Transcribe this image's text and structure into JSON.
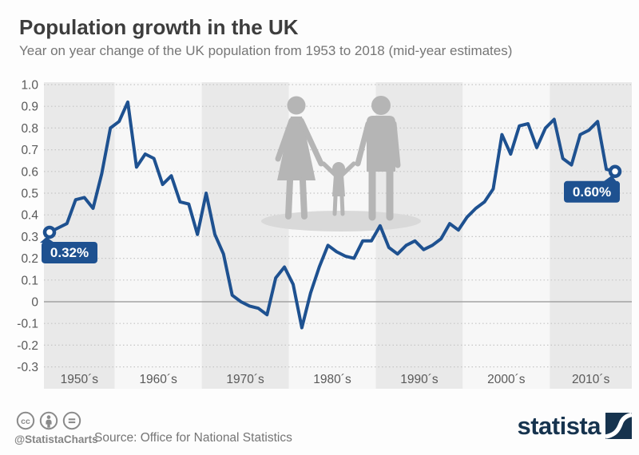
{
  "title": "Population growth in the UK",
  "subtitle": "Year on year change of the UK population from 1953 to 2018 (mid-year estimates)",
  "chart_data": {
    "type": "line",
    "series_name": "Year on year change of UK population (%)",
    "x": [
      1953,
      1954,
      1955,
      1956,
      1957,
      1958,
      1959,
      1960,
      1961,
      1962,
      1963,
      1964,
      1965,
      1966,
      1967,
      1968,
      1969,
      1970,
      1971,
      1972,
      1973,
      1974,
      1975,
      1976,
      1977,
      1978,
      1979,
      1980,
      1981,
      1982,
      1983,
      1984,
      1985,
      1986,
      1987,
      1988,
      1989,
      1990,
      1991,
      1992,
      1993,
      1994,
      1995,
      1996,
      1997,
      1998,
      1999,
      2000,
      2001,
      2002,
      2003,
      2004,
      2005,
      2006,
      2007,
      2008,
      2009,
      2010,
      2011,
      2012,
      2013,
      2014,
      2015,
      2016,
      2017,
      2018
    ],
    "values": [
      0.32,
      0.34,
      0.36,
      0.47,
      0.48,
      0.43,
      0.59,
      0.8,
      0.83,
      0.92,
      0.62,
      0.68,
      0.66,
      0.54,
      0.58,
      0.46,
      0.45,
      0.31,
      0.5,
      0.31,
      0.22,
      0.03,
      0.0,
      -0.02,
      -0.03,
      -0.06,
      0.11,
      0.16,
      0.08,
      -0.12,
      0.04,
      0.16,
      0.26,
      0.23,
      0.21,
      0.2,
      0.28,
      0.28,
      0.35,
      0.25,
      0.22,
      0.26,
      0.28,
      0.24,
      0.26,
      0.29,
      0.36,
      0.33,
      0.39,
      0.43,
      0.46,
      0.52,
      0.77,
      0.68,
      0.81,
      0.82,
      0.71,
      0.8,
      0.84,
      0.66,
      0.63,
      0.77,
      0.79,
      0.83,
      0.61,
      0.6
    ],
    "ylim": [
      -0.3,
      1.0
    ],
    "yticks": [
      "1.0",
      "0.9",
      "0.8",
      "0.7",
      "0.6",
      "0.5",
      "0.4",
      "0.3",
      "0.2",
      "0.1",
      "0",
      "-0.1",
      "-0.2",
      "-0.3"
    ],
    "decade_labels": [
      "1950´s",
      "1960´s",
      "1970´s",
      "1980´s",
      "1990´s",
      "2000´s",
      "2010´s"
    ],
    "grid": "dotted",
    "legend": "none",
    "annotations": [
      {
        "year": 1953,
        "label": "0.32%",
        "side": "right"
      },
      {
        "year": 2018,
        "label": "0.60%",
        "side": "left"
      }
    ]
  },
  "theme": {
    "line_color": "#1e5190",
    "badge_color": "#1e5190",
    "band_gray": "#e9e9e9",
    "band_light": "#f7f7f7",
    "grid_color": "#c6c6c6",
    "zero_line_color": "#a3a3a3",
    "axis_text_color": "#595959",
    "silhouette_color": "#b5b5b5",
    "shadow_color": "#d9d9d9",
    "logo_navy": "#16334e"
  },
  "footer": {
    "license_icons": [
      "cc-icon",
      "attribution-icon",
      "no-derivatives-icon"
    ],
    "handle": "@StatistaCharts",
    "source": "Source: Office for National Statistics",
    "logo_text": "statista"
  }
}
